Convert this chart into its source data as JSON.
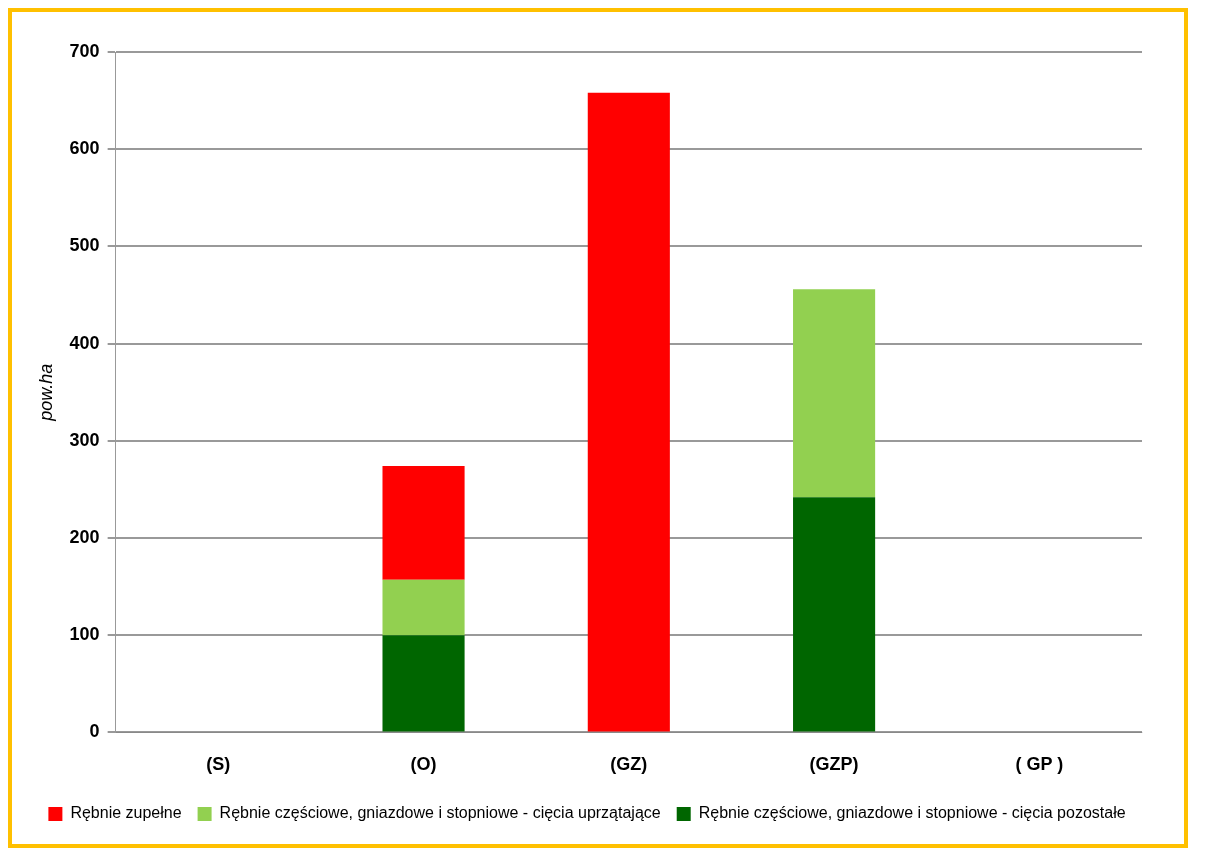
{
  "chart_data": {
    "type": "bar",
    "stacked": true,
    "ylabel": "pow.ha",
    "categories": [
      "(S)",
      "(O)",
      "(GZ)",
      "(GZP)",
      "( GP )"
    ],
    "series": [
      {
        "name": "Rębnie częściowe, gniazdowe i stopniowe - cięcia pozostałe",
        "color": "#006600",
        "values": [
          null,
          100,
          null,
          242,
          null
        ]
      },
      {
        "name": "Rębnie częściowe, gniazdowe i stopniowe - cięcia uprzątające",
        "color": "#92d050",
        "values": [
          null,
          57,
          null,
          214,
          null
        ]
      },
      {
        "name": "Rębnie zupełne",
        "color": "#ff0000",
        "values": [
          null,
          117,
          658,
          null,
          null
        ]
      }
    ],
    "ylim": [
      0,
      700
    ],
    "yticks": [
      0,
      100,
      200,
      300,
      400,
      500,
      600,
      700
    ],
    "grid": "y",
    "legend": "bottom"
  }
}
